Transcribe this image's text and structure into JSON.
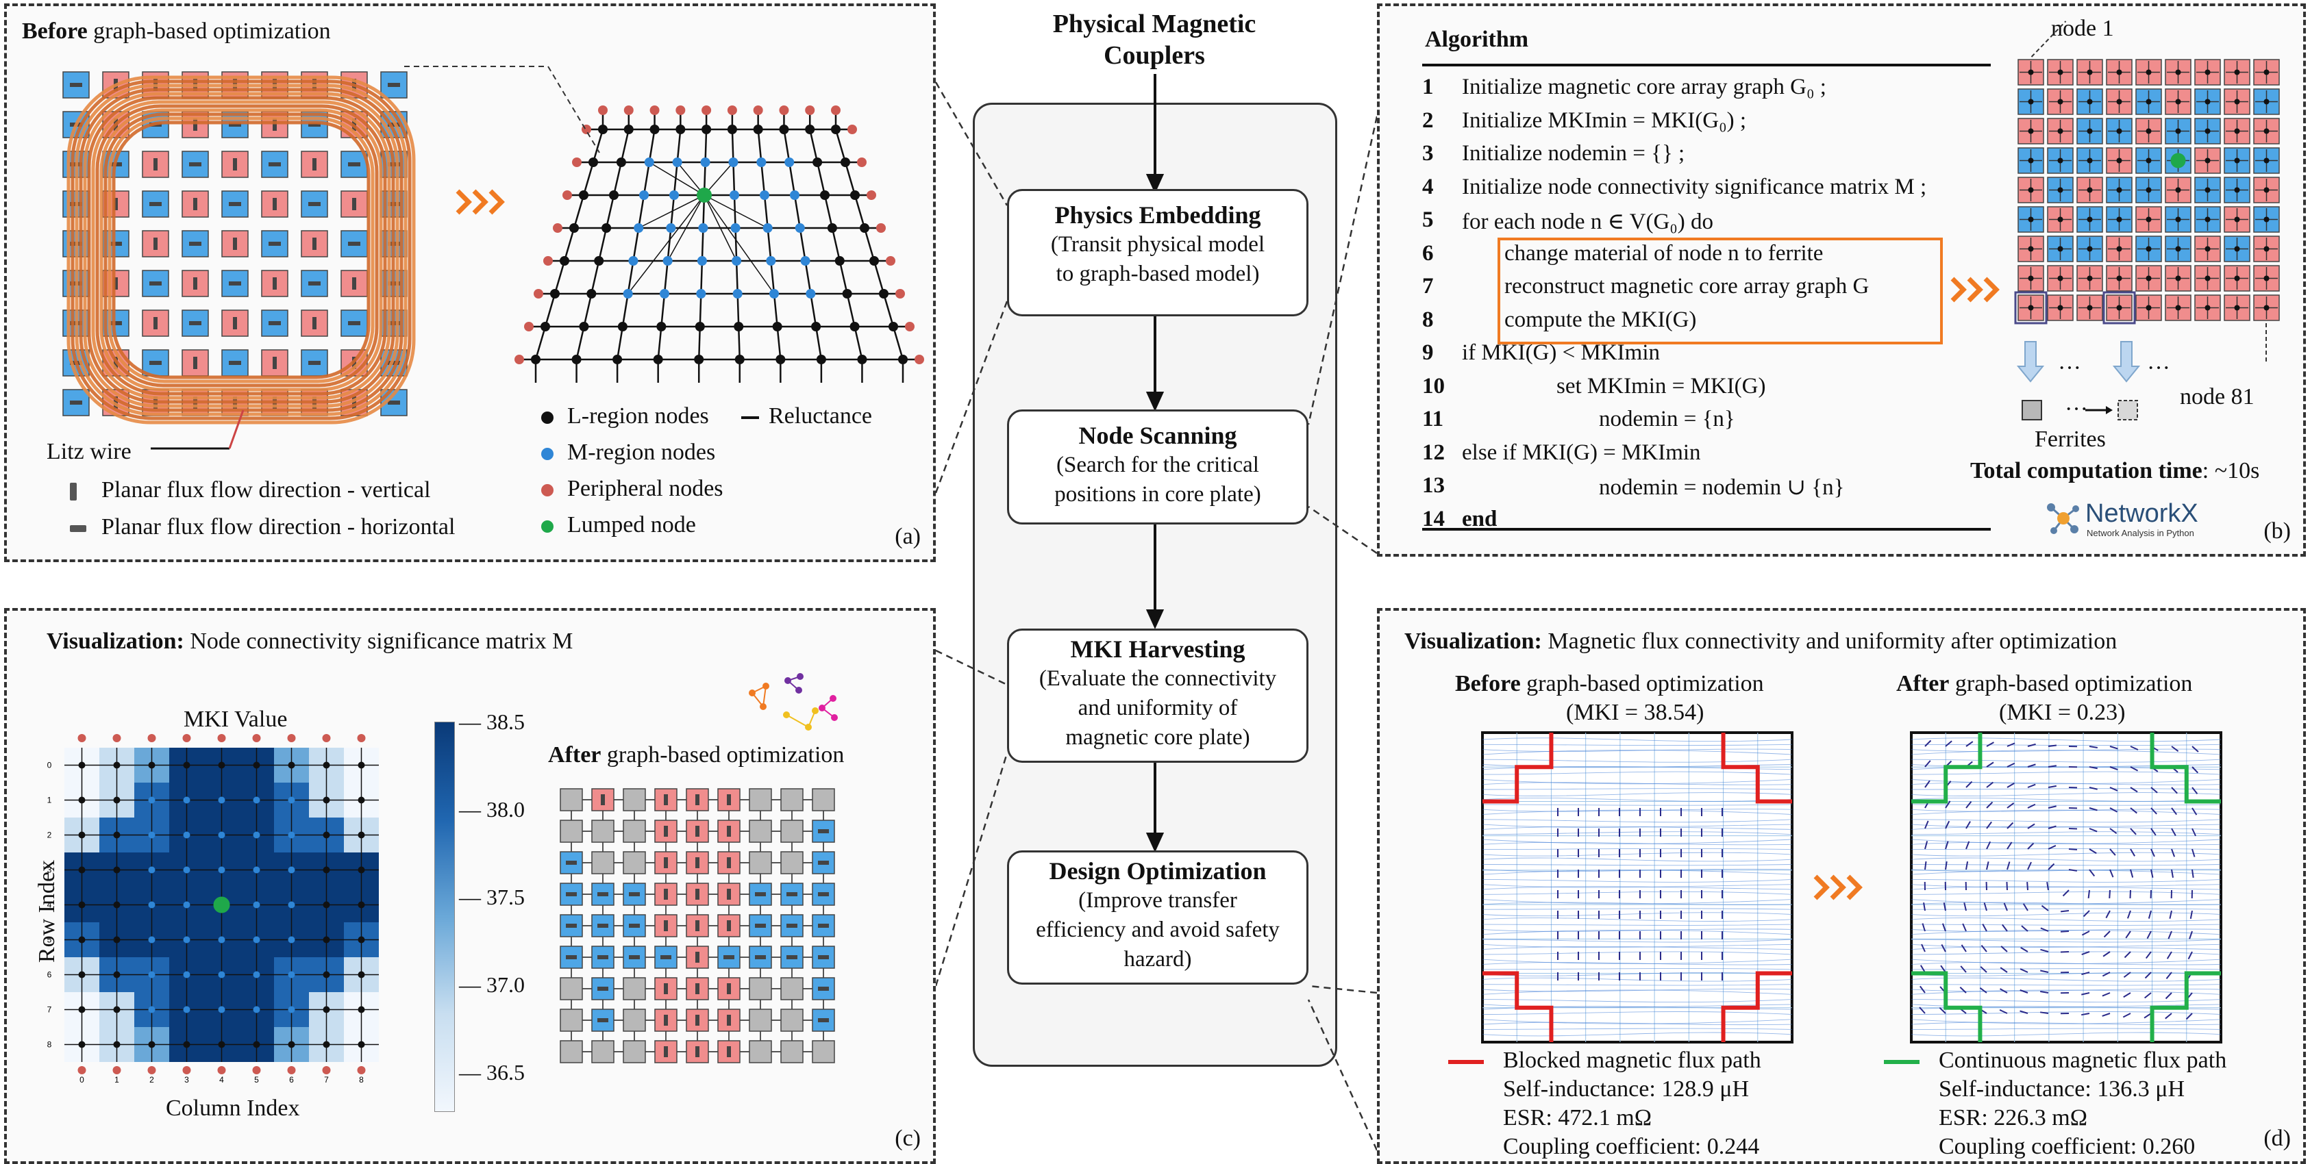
{
  "center": {
    "title_line1": "Physical Magnetic",
    "title_line2": "Couplers",
    "steps": [
      {
        "title": "Physics Embedding",
        "line1": "(Transit physical model",
        "line2": "to graph-based model)",
        "line3": ""
      },
      {
        "title": "Node Scanning",
        "line1": "(Search for the critical",
        "line2": "positions in core plate)",
        "line3": ""
      },
      {
        "title": "MKI Harvesting",
        "line1": "(Evaluate the connectivity",
        "line2": "and uniformity of",
        "line3": "magnetic core plate)"
      },
      {
        "title": "Design Optimization",
        "line1": "(Improve transfer",
        "line2": "efficiency and avoid safety",
        "line3": "hazard)"
      }
    ]
  },
  "panel_a": {
    "title_bold": "Before",
    "title_rest": " graph-based optimization",
    "litz": "Litz wire",
    "legend": [
      "Planar flux flow direction - vertical",
      "Planar flux flow direction - horizontal"
    ],
    "graph_legend": {
      "l": "L-region nodes",
      "m": "M-region nodes",
      "p": "Peripheral nodes",
      "lump": "Lumped node",
      "rel": "Reluctance"
    },
    "label": "(a)",
    "colors": {
      "l": "#111111",
      "m": "#2f86d6",
      "p": "#cd5a52",
      "lump": "#1fa84a"
    }
  },
  "panel_b": {
    "header": "Algorithm",
    "lines": [
      {
        "n": "1",
        "text": "Initialize magnetic core array graph G₀ ;"
      },
      {
        "n": "2",
        "text": "Initialize MKImin = MKI(G₀) ;"
      },
      {
        "n": "3",
        "text": "Initialize nodemin = {} ;"
      },
      {
        "n": "4",
        "text": "Initialize node connectivity significance matrix M ;"
      },
      {
        "n": "5",
        "text": "for each node n ∈ V(G₀) do"
      },
      {
        "n": "6",
        "text": "change material of node n to ferrite"
      },
      {
        "n": "7",
        "text": "reconstruct magnetic core array graph G"
      },
      {
        "n": "8",
        "text": "compute the MKI(G)"
      },
      {
        "n": "9",
        "text": "if MKI(G) < MKImin"
      },
      {
        "n": "10",
        "text": "set MKImin = MKI(G)"
      },
      {
        "n": "11",
        "text": "nodemin = {n}"
      },
      {
        "n": "12",
        "text": "else if MKI(G) = MKImin"
      },
      {
        "n": "13",
        "text": "nodemin = nodemin ∪ {n}"
      },
      {
        "n": "14",
        "text": "end"
      }
    ],
    "node1": "node 1",
    "node81": "node 81",
    "ferrites": "Ferrites",
    "dots": "···",
    "time_bold": "Total computation time",
    "time_rest": ": ~10s",
    "networkx": "NetworkX",
    "networkx_sub": "Network Analysis in Python",
    "label": "(b)"
  },
  "panel_c": {
    "title_bold": "Visualization:",
    "title_rest": " Node connectivity significance matrix M",
    "heatmap_title": "MKI Value",
    "xlabel": "Column Index",
    "ylabel": "Row Index",
    "ticks": [
      "0",
      "1",
      "2",
      "3",
      "4",
      "5",
      "6",
      "7",
      "8"
    ],
    "colorbar_ticks": [
      "38.5",
      "38.0",
      "37.5",
      "37.0",
      "36.5"
    ],
    "after_bold": "After",
    "after_rest": " graph-based optimization",
    "label": "(c)"
  },
  "panel_d": {
    "title_bold": "Visualization:",
    "title_rest": " Magnetic flux connectivity and uniformity after optimization",
    "before_bold": "Before",
    "before_rest": " graph-based optimization",
    "before_mki": "(MKI = 38.54)",
    "after_bold": "After",
    "after_rest": " graph-based optimization",
    "after_mki": "(MKI = 0.23)",
    "before_legend": "Blocked magnetic flux path",
    "before_stats": [
      "Self-inductance: 128.9 μH",
      "ESR: 472.1 mΩ",
      "Coupling coefficient: 0.244"
    ],
    "after_legend": "Continuous magnetic flux path",
    "after_stats": [
      "Self-inductance: 136.3 μH",
      "ESR: 226.3 mΩ",
      "Coupling coefficient: 0.260"
    ],
    "label": "(d)"
  },
  "colors": {
    "pink": "#f08d8d",
    "blue": "#4ea6e6",
    "gray": "#b8b8b8",
    "orange": "#f07a22",
    "red": "#e02020",
    "green": "#22b04a"
  }
}
